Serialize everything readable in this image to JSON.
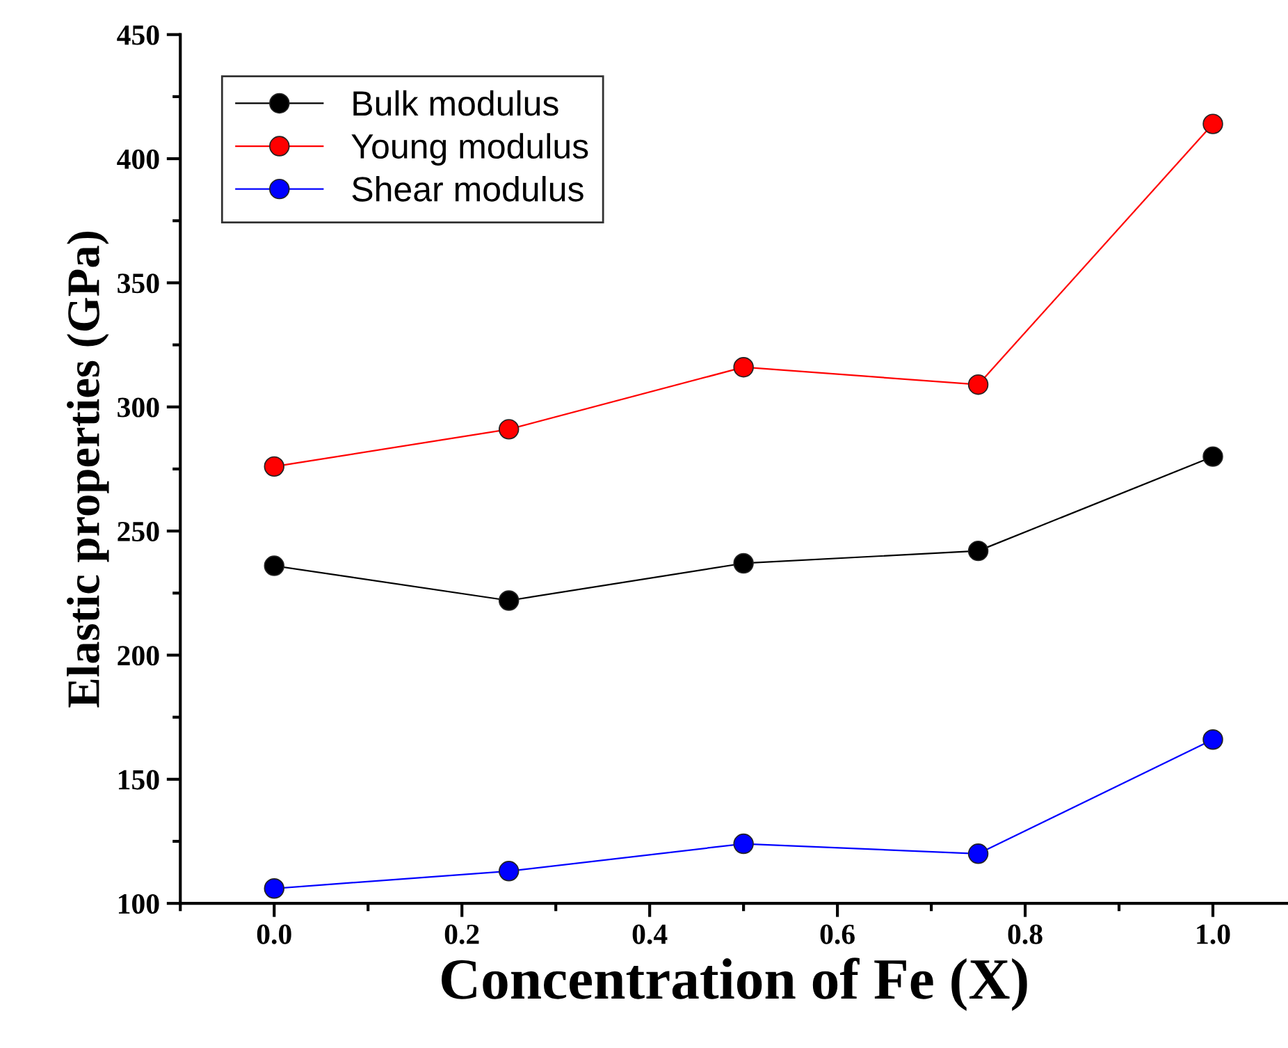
{
  "chart_data": {
    "type": "line",
    "xlabel": "Concentration of Fe (X)",
    "ylabel": "Elastic properties (GPa)",
    "x": [
      0.0,
      0.25,
      0.5,
      0.75,
      1.0
    ],
    "series": [
      {
        "name": "Bulk modulus",
        "color": "#000000",
        "values": [
          236,
          222,
          237,
          242,
          280
        ]
      },
      {
        "name": "Young modulus",
        "color": "#ff0000",
        "values": [
          276,
          291,
          316,
          309,
          414
        ]
      },
      {
        "name": "Shear modulus",
        "color": "#0000ff",
        "values": [
          106,
          113,
          124,
          120,
          166
        ]
      }
    ],
    "xlim": [
      -0.1,
      1.08
    ],
    "xticks": [
      {
        "value": 0.0,
        "label": "0.0"
      },
      0.2,
      0.4,
      0.6,
      0.8,
      {
        "value": 1.0,
        "label": "1.0"
      }
    ],
    "ylim": [
      100,
      450
    ],
    "yticks": [
      100,
      150,
      200,
      250,
      300,
      350,
      400,
      450
    ],
    "marker": "circle",
    "line_style": "solid",
    "legend": "top left",
    "grid": false
  }
}
